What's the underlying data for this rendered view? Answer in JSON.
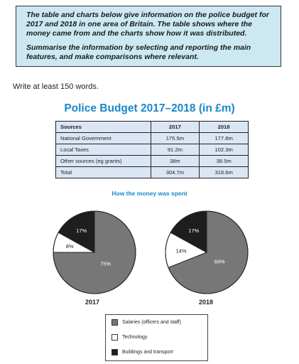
{
  "task": {
    "paragraph1": "The table and charts below give information on the police budget for 2017 and 2018 in one area of Britain. The table shows where the money came from and the charts show how it was distributed.",
    "paragraph2": "Summarise the information by selecting and reporting the main features, and make comparisons where relevant."
  },
  "instruction": "Write at least 150 words.",
  "main_title": "Police Budget 2017–2018 (in £m)",
  "table": {
    "headers": [
      "Sources",
      "2017",
      "2018"
    ],
    "rows": [
      [
        "National Government",
        "175.5m",
        "177.8m"
      ],
      [
        "Local Taxes",
        "91.2m",
        "102.3m"
      ],
      [
        "Other sources (eg grants)",
        "38m",
        "38.5m"
      ],
      [
        "Total",
        "304.7m",
        "318.6m"
      ]
    ]
  },
  "charts_title": "How the money was spent",
  "chart_data": [
    {
      "type": "pie",
      "title": "2017",
      "slices": [
        {
          "label": "Salaries (officers and staff)",
          "value": 75,
          "display": "75%",
          "color": "#777777"
        },
        {
          "label": "Technology",
          "value": 8,
          "display": "8%",
          "color": "#ffffff"
        },
        {
          "label": "Buildings and transport",
          "value": 17,
          "display": "17%",
          "color": "#1e1e1e"
        }
      ]
    },
    {
      "type": "pie",
      "title": "2018",
      "slices": [
        {
          "label": "Salaries (officers and staff)",
          "value": 69,
          "display": "69%",
          "color": "#777777"
        },
        {
          "label": "Technology",
          "value": 14,
          "display": "14%",
          "color": "#ffffff"
        },
        {
          "label": "Buildings and transport",
          "value": 17,
          "display": "17%",
          "color": "#1e1e1e"
        }
      ]
    }
  ],
  "legend": [
    {
      "label": "Salaries (officers and staff)",
      "color": "#777777"
    },
    {
      "label": "Technology",
      "color": "#ffffff"
    },
    {
      "label": "Buildings and transport",
      "color": "#1e1e1e"
    }
  ]
}
